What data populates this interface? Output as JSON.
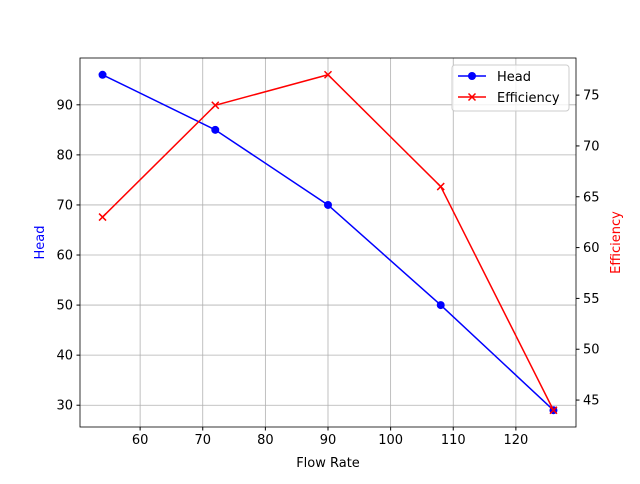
{
  "chart_data": {
    "type": "line",
    "title": "",
    "xlabel": "Flow Rate",
    "ylabel": "Head",
    "y2label": "Efficiency",
    "x": [
      54,
      72,
      90,
      108,
      126
    ],
    "xlim": [
      50.4,
      129.6
    ],
    "ylim": [
      25.65,
      99.35
    ],
    "y2lim": [
      42.35,
      78.65
    ],
    "xticks": [
      60,
      70,
      80,
      90,
      100,
      110,
      120
    ],
    "yticks": [
      30,
      40,
      50,
      60,
      70,
      80,
      90
    ],
    "y2ticks": [
      45,
      50,
      55,
      60,
      65,
      70,
      75
    ],
    "grid": true,
    "legend_position": "top-right",
    "series": [
      {
        "name": "Head",
        "axis": "left",
        "values": [
          96,
          85,
          70,
          50,
          29
        ],
        "color": "#0000ff",
        "marker": "circle"
      },
      {
        "name": "Efficiency",
        "axis": "right",
        "values": [
          63,
          74,
          77,
          66,
          44
        ],
        "color": "#ff0000",
        "marker": "x"
      }
    ]
  }
}
